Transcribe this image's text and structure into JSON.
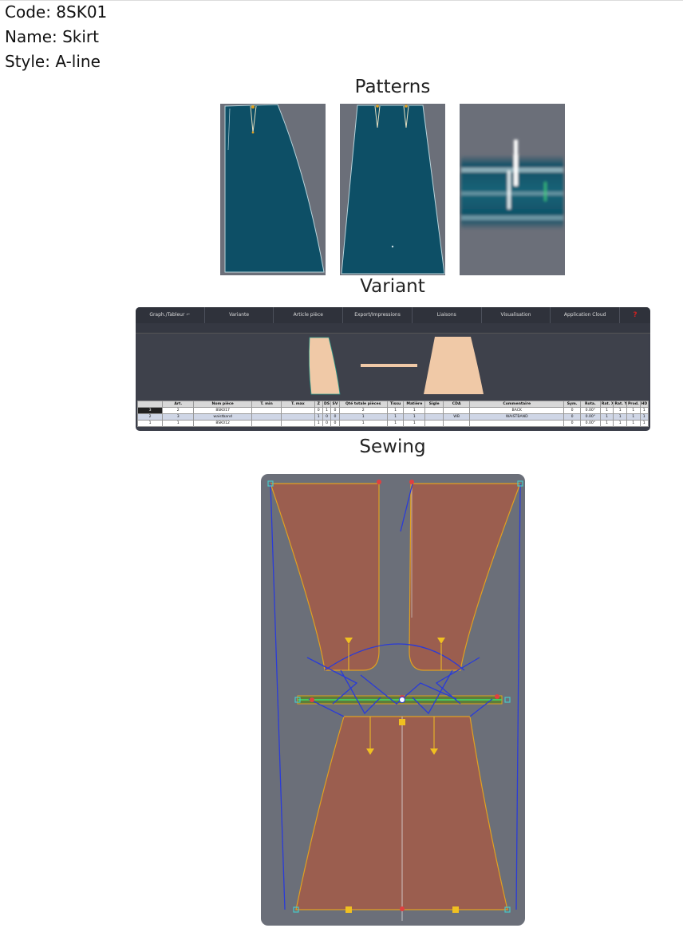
{
  "product": {
    "code_line": "Code: 8SK01",
    "name_line": "Name: Skirt",
    "style_line": "Style: A-line"
  },
  "sections": {
    "patterns": "Patterns",
    "variant": "Variant",
    "sewing": "Sewing"
  },
  "variant_ui": {
    "menu": [
      "Graph./Tableur",
      "Variante",
      "Article pièce",
      "Export/Impressions",
      "Liaisons",
      "Visualisation",
      "Application Cloud",
      "?"
    ],
    "columns": [
      "",
      "Art.",
      "Nom pièce",
      "T. min",
      "T. max",
      "Z",
      "DS",
      "SV",
      "Qté totale pièces",
      "Tissu",
      "Matière",
      "Sigle",
      "CDA",
      "Commentaire",
      "Sym.",
      "Rota.",
      "Rat. X",
      "Rat. Y",
      "Prod.",
      "HD"
    ],
    "rows": [
      [
        "3",
        "2",
        "8SK017",
        "",
        "",
        "0",
        "1",
        "0",
        "2",
        "1",
        "1",
        "",
        "",
        "BACK",
        "0",
        "0.00°",
        "1",
        "1",
        "1",
        "1"
      ],
      [
        "2",
        "3",
        "waistband",
        "",
        "",
        "1",
        "0",
        "0",
        "1",
        "1",
        "1",
        "",
        "WB",
        "WAISTBAND",
        "0",
        "0.00°",
        "1",
        "1",
        "1",
        "1"
      ],
      [
        "1",
        "1",
        "8SK012",
        "",
        "",
        "1",
        "0",
        "0",
        "1",
        "1",
        "1",
        "",
        "",
        "",
        "0",
        "0.00°",
        "1",
        "1",
        "1",
        "1"
      ]
    ]
  },
  "colors": {
    "page_bg": "#ffffff",
    "pattern_bg": "#6b6f79",
    "pattern_fill": "#0d4f66",
    "variant_piece": "#f0c9a7",
    "sewing_piece": "#9b5e4f",
    "sewing_outline": "#e0a020",
    "sewing_line": "#2a3bd8"
  },
  "icons": {
    "menu_dropdown": "chevron-down-icon"
  }
}
